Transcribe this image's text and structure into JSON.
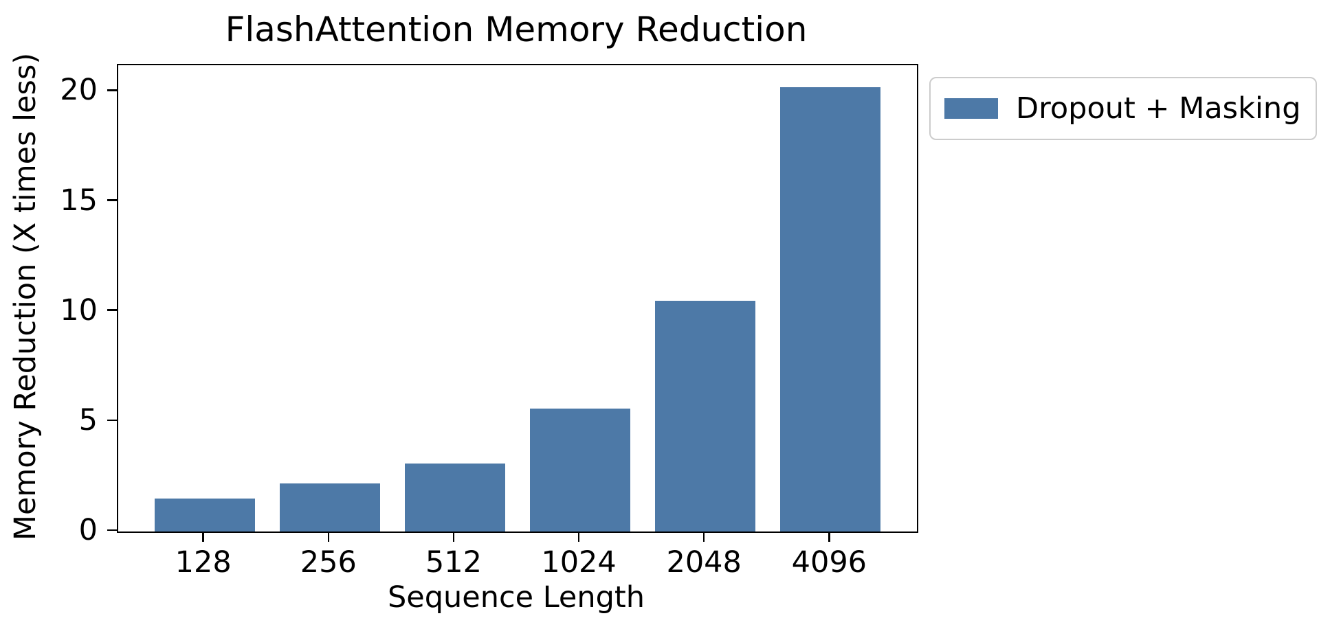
{
  "chart_data": {
    "type": "bar",
    "title": "FlashAttention Memory Reduction",
    "xlabel": "Sequence Length",
    "ylabel": "Memory Reduction (X times less)",
    "categories": [
      "128",
      "256",
      "512",
      "1024",
      "2048",
      "4096"
    ],
    "series": [
      {
        "name": "Dropout + Masking",
        "values": [
          1.5,
          2.2,
          3.1,
          5.6,
          10.5,
          20.2
        ]
      }
    ],
    "yticks": [
      0,
      5,
      10,
      15,
      20
    ],
    "ylim": [
      0,
      21.2
    ],
    "xlim": [
      -0.69,
      5.69
    ],
    "bar_width_units": 0.8,
    "grid": false,
    "legend": {
      "entries": [
        "Dropout + Masking"
      ],
      "position": "outside-upper-right"
    },
    "colors": {
      "bar": "#4d79a7",
      "text": "#000000",
      "spine": "#000000",
      "legend_border": "#cccccc",
      "background": "#ffffff"
    }
  }
}
